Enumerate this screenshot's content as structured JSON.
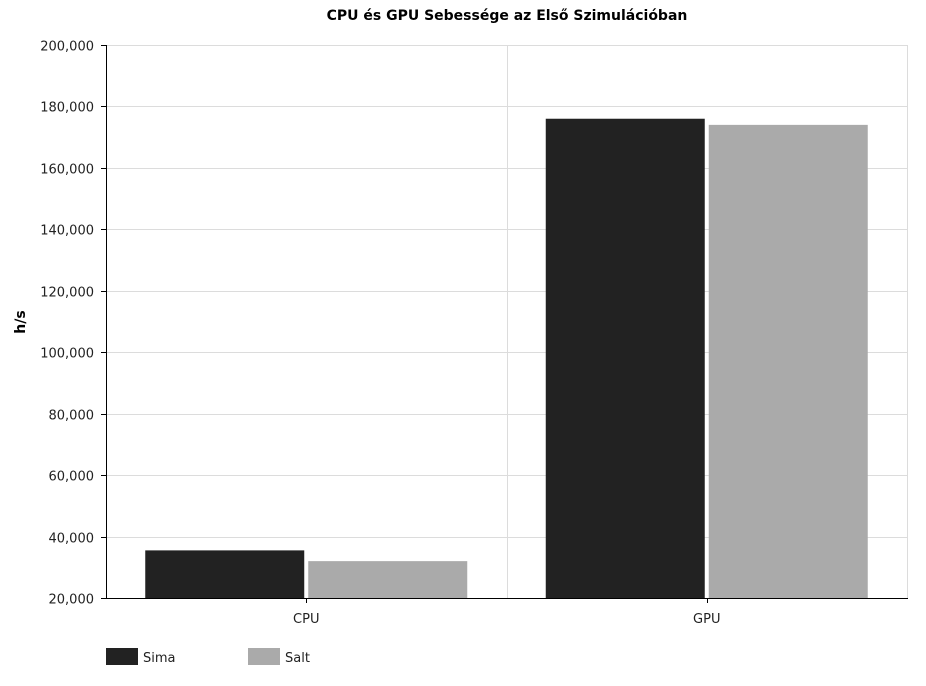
{
  "chart_data": {
    "type": "bar",
    "title": "CPU és GPU Sebessége az Első Szimulációban",
    "xlabel": "",
    "ylabel": "h/s",
    "categories": [
      "CPU",
      "GPU"
    ],
    "series": [
      {
        "name": "Sima",
        "values": [
          35500,
          176000
        ],
        "color": "#222222"
      },
      {
        "name": "Salt",
        "values": [
          32000,
          174000
        ],
        "color": "#aaaaaa"
      }
    ],
    "ylim": [
      20000,
      200000
    ],
    "yticks": [
      20000,
      40000,
      60000,
      80000,
      100000,
      120000,
      140000,
      160000,
      180000,
      200000
    ],
    "ytick_labels": [
      "20,000",
      "40,000",
      "60,000",
      "80,000",
      "100,000",
      "120,000",
      "140,000",
      "160,000",
      "180,000",
      "200,000"
    ],
    "grid": true,
    "legend_position": "bottom-left"
  }
}
